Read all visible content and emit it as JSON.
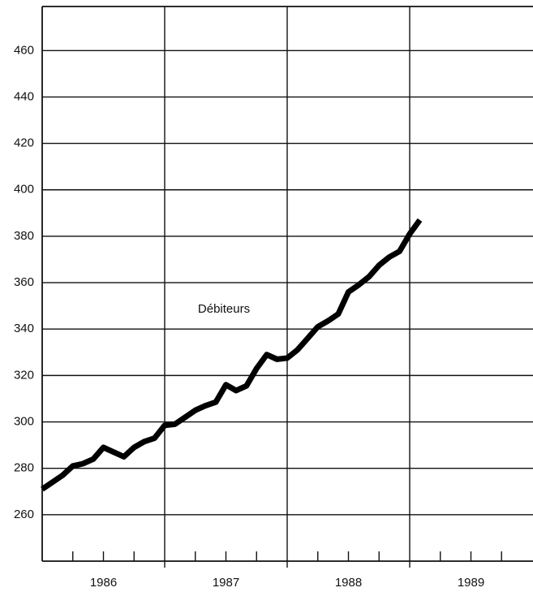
{
  "chart_data": {
    "type": "line",
    "annotation": "Débiteurs",
    "x": [
      1986.0,
      1986.083,
      1986.167,
      1986.25,
      1986.333,
      1986.417,
      1986.5,
      1986.583,
      1986.667,
      1986.75,
      1986.833,
      1986.917,
      1987.0,
      1987.083,
      1987.167,
      1987.25,
      1987.333,
      1987.417,
      1987.5,
      1987.583,
      1987.667,
      1987.75,
      1987.833,
      1987.917,
      1988.0,
      1988.083,
      1988.167,
      1988.25,
      1988.333,
      1988.417,
      1988.5,
      1988.583,
      1988.667,
      1988.75,
      1988.833,
      1988.917,
      1989.0,
      1989.083
    ],
    "series": [
      {
        "color": "#000000",
        "values": [
          271,
          274,
          277,
          281,
          282,
          284,
          289,
          287,
          285,
          289,
          291.5,
          293,
          298.5,
          299,
          302,
          305,
          307,
          308.5,
          316,
          313.5,
          315.5,
          323,
          329,
          327,
          327.5,
          331,
          336,
          341,
          343.5,
          346.5,
          356,
          359,
          362.5,
          367.5,
          371,
          373.5,
          381,
          387
        ]
      }
    ],
    "xlim": [
      1986,
      1990
    ],
    "xticks": [
      {
        "value": 1986.5,
        "label": "1986"
      },
      {
        "value": 1987.5,
        "label": "1987"
      },
      {
        "value": 1988.5,
        "label": "1988"
      },
      {
        "value": 1989.5,
        "label": "1989"
      }
    ],
    "xticks_minor": [
      1986.25,
      1986.75,
      1987.25,
      1987.75,
      1988.25,
      1988.75,
      1989.25,
      1989.75
    ],
    "xgrid": [
      1987,
      1988,
      1989
    ],
    "ylim": [
      240,
      479
    ],
    "yticks": [
      260,
      280,
      300,
      320,
      340,
      360,
      380,
      400,
      420,
      440,
      460
    ],
    "grid": true
  }
}
